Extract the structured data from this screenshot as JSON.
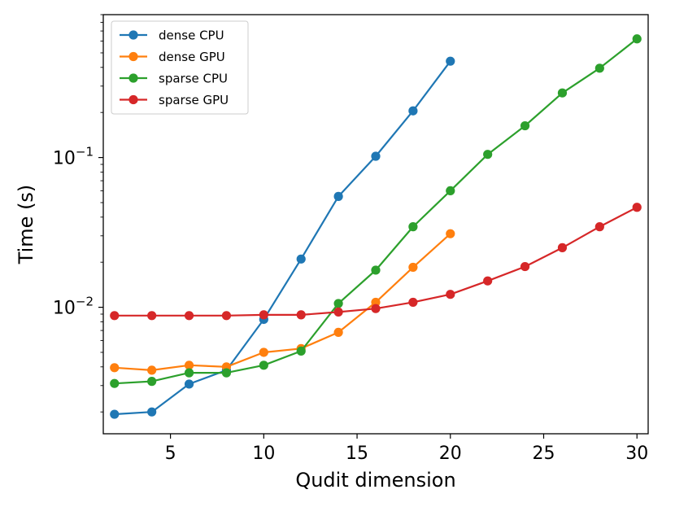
{
  "chart_data": {
    "type": "line",
    "xlabel": "Qudit dimension",
    "ylabel": "Time (s)",
    "y_scale": "log",
    "xlim": [
      1.4,
      30.6
    ],
    "ylim": [
      0.00143,
      0.9
    ],
    "x_ticks": [
      5,
      10,
      15,
      20,
      25,
      30
    ],
    "x_tick_labels": [
      "5",
      "10",
      "15",
      "20",
      "25",
      "30"
    ],
    "y_major_ticks": [
      0.01,
      0.1
    ],
    "y_tick_labels": [
      {
        "base": "10",
        "exp": "−2"
      },
      {
        "base": "10",
        "exp": "−1"
      }
    ],
    "legend_position": "upper-left",
    "grid": false,
    "series": [
      {
        "name": "dense CPU",
        "color": "#1f77b4",
        "x": [
          2,
          4,
          6,
          8,
          10,
          12,
          14,
          16,
          18,
          20
        ],
        "y": [
          0.00193,
          0.002,
          0.00307,
          0.0038,
          0.0083,
          0.021,
          0.055,
          0.102,
          0.205,
          0.44
        ]
      },
      {
        "name": "dense GPU",
        "color": "#ff7f0e",
        "x": [
          2,
          4,
          6,
          8,
          10,
          12,
          14,
          16,
          18,
          20
        ],
        "y": [
          0.00395,
          0.0038,
          0.0041,
          0.004,
          0.005,
          0.0053,
          0.0068,
          0.0108,
          0.0185,
          0.031
        ]
      },
      {
        "name": "sparse CPU",
        "color": "#2ca02c",
        "x": [
          2,
          4,
          6,
          8,
          10,
          12,
          14,
          16,
          18,
          20,
          22,
          24,
          26,
          28,
          30
        ],
        "y": [
          0.0031,
          0.0032,
          0.00365,
          0.00365,
          0.0041,
          0.0051,
          0.0106,
          0.0177,
          0.0345,
          0.06,
          0.105,
          0.163,
          0.27,
          0.395,
          0.62
        ]
      },
      {
        "name": "sparse GPU",
        "color": "#d62728",
        "x": [
          2,
          4,
          6,
          8,
          10,
          12,
          14,
          16,
          18,
          20,
          22,
          24,
          26,
          28,
          30
        ],
        "y": [
          0.0088,
          0.0088,
          0.0088,
          0.0088,
          0.0089,
          0.0089,
          0.0093,
          0.0098,
          0.0108,
          0.0122,
          0.015,
          0.0187,
          0.025,
          0.0345,
          0.0465
        ]
      }
    ]
  }
}
